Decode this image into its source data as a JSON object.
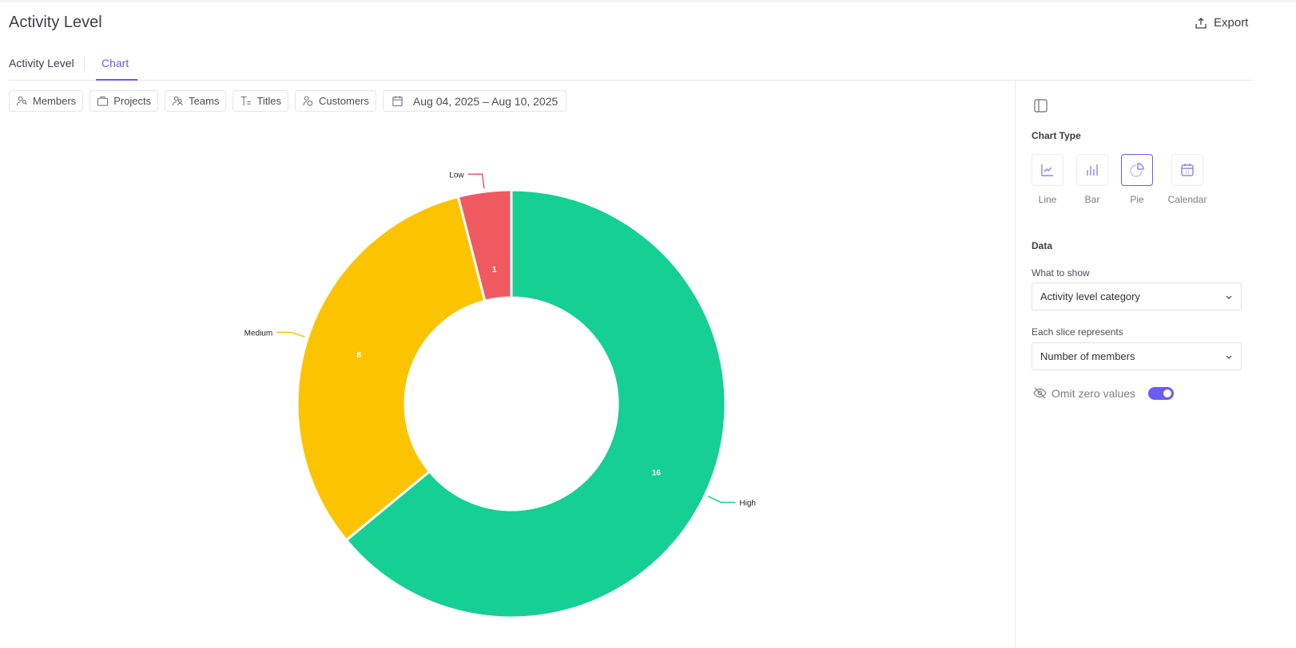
{
  "header": {
    "title": "Activity Level",
    "export_label": "Export"
  },
  "tabs": [
    {
      "label": "Activity Level"
    },
    {
      "label": "Chart",
      "active": true
    }
  ],
  "filters": {
    "members": "Members",
    "projects": "Projects",
    "teams": "Teams",
    "titles": "Titles",
    "customers": "Customers",
    "date_range": "Aug 04, 2025 – Aug 10, 2025"
  },
  "sidebar": {
    "chart_type_heading": "Chart Type",
    "chart_types": [
      {
        "label": "Line"
      },
      {
        "label": "Bar"
      },
      {
        "label": "Pie",
        "selected": true
      },
      {
        "label": "Calendar"
      }
    ],
    "data_heading": "Data",
    "what_to_show_label": "What to show",
    "what_to_show_value": "Activity level category",
    "slice_label": "Each slice represents",
    "slice_value": "Number of members",
    "omit_zero_label": "Omit zero values",
    "omit_zero_on": true
  },
  "colors": {
    "accent": "#6b5cf6",
    "high": "#16cf94",
    "medium": "#fcc400",
    "low": "#ef5a61"
  },
  "chart_data": {
    "type": "pie",
    "donut": true,
    "categories": [
      "High",
      "Medium",
      "Low"
    ],
    "values": [
      16,
      8,
      1
    ],
    "colors": [
      "#16cf94",
      "#fcc400",
      "#ef5a61"
    ]
  }
}
